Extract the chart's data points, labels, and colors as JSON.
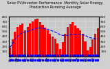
{
  "title": "Solar PV/Inverter Performance  Monthly Solar Energy Production Running Average",
  "bar_values": [
    185,
    340,
    490,
    590,
    640,
    660,
    530,
    590,
    660,
    700,
    740,
    760,
    690,
    640,
    580,
    520,
    450,
    400,
    360,
    260,
    150,
    290,
    460,
    590,
    650,
    690,
    620,
    570,
    520,
    460,
    300,
    130,
    200,
    340,
    460,
    570
  ],
  "running_avg": [
    185,
    263,
    338,
    401,
    449,
    484,
    491,
    505,
    521,
    539,
    557,
    573,
    571,
    566,
    557,
    544,
    527,
    509,
    490,
    465,
    436,
    423,
    420,
    427,
    436,
    445,
    447,
    446,
    444,
    438,
    422,
    395,
    377,
    365,
    358,
    357
  ],
  "monthly_avg_y": 30,
  "bar_color": "#ff0000",
  "running_avg_color": "#0000ff",
  "bg_color": "#d0d0d0",
  "plot_bg": "#c8c8c8",
  "bottom_strip_color": "#000000",
  "white": "#ffffff",
  "ylim": [
    0,
    800
  ],
  "ytick_vals": [
    100,
    200,
    300,
    400,
    500,
    600,
    700,
    800
  ],
  "n_bars": 36,
  "title_fontsize": 3.8,
  "tick_fontsize": 3.2,
  "xtick_positions": [
    0,
    3,
    6,
    9,
    12,
    15,
    18,
    21,
    24,
    27,
    30,
    33
  ],
  "xtick_labels": [
    "Jan\n08",
    "Apr\n08",
    "Jul\n08",
    "Oct\n08",
    "Jan\n09",
    "Apr\n09",
    "Jul\n09",
    "Oct\n09",
    "Jan\n10",
    "Apr\n10",
    "Jul\n10",
    "Oct\n10"
  ]
}
